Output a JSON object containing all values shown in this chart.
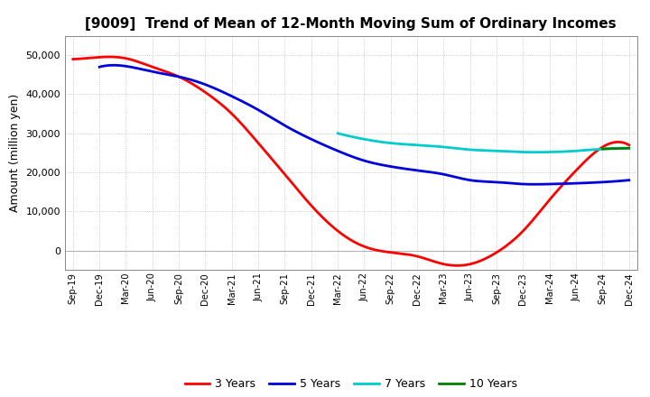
{
  "title": "[9009]  Trend of Mean of 12-Month Moving Sum of Ordinary Incomes",
  "ylabel": "Amount (million yen)",
  "ylim": [
    -5000,
    55000
  ],
  "yticks": [
    0,
    10000,
    20000,
    30000,
    40000,
    50000
  ],
  "background_color": "#ffffff",
  "plot_bg_color": "#ffffff",
  "grid_color": "#bbbbbb",
  "x_labels": [
    "Sep-19",
    "Dec-19",
    "Mar-20",
    "Jun-20",
    "Sep-20",
    "Dec-20",
    "Mar-21",
    "Jun-21",
    "Sep-21",
    "Dec-21",
    "Mar-22",
    "Jun-22",
    "Sep-22",
    "Dec-22",
    "Mar-23",
    "Jun-23",
    "Sep-23",
    "Dec-23",
    "Mar-24",
    "Jun-24",
    "Sep-24",
    "Dec-24"
  ],
  "series": {
    "3 Years": {
      "color": "#ff0000",
      "data": {
        "Sep-19": 49000,
        "Dec-19": 49500,
        "Mar-20": 49200,
        "Jun-20": 47000,
        "Sep-20": 44500,
        "Dec-20": 40500,
        "Mar-21": 35000,
        "Jun-21": 27500,
        "Sep-21": 19500,
        "Dec-21": 11500,
        "Mar-22": 5000,
        "Jun-22": 1000,
        "Sep-22": -500,
        "Dec-22": -1500,
        "Mar-23": -3500,
        "Jun-23": -3500,
        "Sep-23": -500,
        "Dec-23": 5000,
        "Mar-24": 13000,
        "Jun-24": 20500,
        "Sep-24": 26500,
        "Dec-24": 27000
      }
    },
    "5 Years": {
      "color": "#0000dd",
      "data": {
        "Sep-19": null,
        "Dec-19": 47000,
        "Mar-20": 47200,
        "Jun-20": 45800,
        "Sep-20": 44500,
        "Dec-20": 42500,
        "Mar-21": 39500,
        "Jun-21": 36000,
        "Sep-21": 32000,
        "Dec-21": 28500,
        "Mar-22": 25500,
        "Jun-22": 23000,
        "Sep-22": 21500,
        "Dec-22": 20500,
        "Mar-23": 19500,
        "Jun-23": 18000,
        "Sep-23": 17500,
        "Dec-23": 17000,
        "Mar-24": 17000,
        "Jun-24": 17200,
        "Sep-24": 17500,
        "Dec-24": 18000
      }
    },
    "7 Years": {
      "color": "#00cccc",
      "data": {
        "Sep-19": null,
        "Dec-19": null,
        "Mar-20": null,
        "Jun-20": null,
        "Sep-20": null,
        "Dec-20": null,
        "Mar-21": null,
        "Jun-21": null,
        "Sep-21": null,
        "Dec-21": null,
        "Mar-22": 30000,
        "Jun-22": 28500,
        "Sep-22": 27500,
        "Dec-22": 27000,
        "Mar-23": 26500,
        "Jun-23": 25800,
        "Sep-23": 25500,
        "Dec-23": 25200,
        "Mar-24": 25200,
        "Jun-24": 25500,
        "Sep-24": 26000,
        "Dec-24": 26200
      }
    },
    "10 Years": {
      "color": "#008000",
      "data": {
        "Sep-19": null,
        "Dec-19": null,
        "Mar-20": null,
        "Jun-20": null,
        "Sep-20": null,
        "Dec-20": null,
        "Mar-21": null,
        "Jun-21": null,
        "Sep-21": null,
        "Dec-21": null,
        "Mar-22": null,
        "Jun-22": null,
        "Sep-22": null,
        "Dec-22": null,
        "Mar-23": null,
        "Jun-23": null,
        "Sep-23": null,
        "Dec-23": null,
        "Mar-24": null,
        "Jun-24": null,
        "Sep-24": 26000,
        "Dec-24": 26200
      }
    }
  },
  "legend_labels": [
    "3 Years",
    "5 Years",
    "7 Years",
    "10 Years"
  ],
  "legend_colors": [
    "#ff0000",
    "#0000dd",
    "#00cccc",
    "#008000"
  ]
}
